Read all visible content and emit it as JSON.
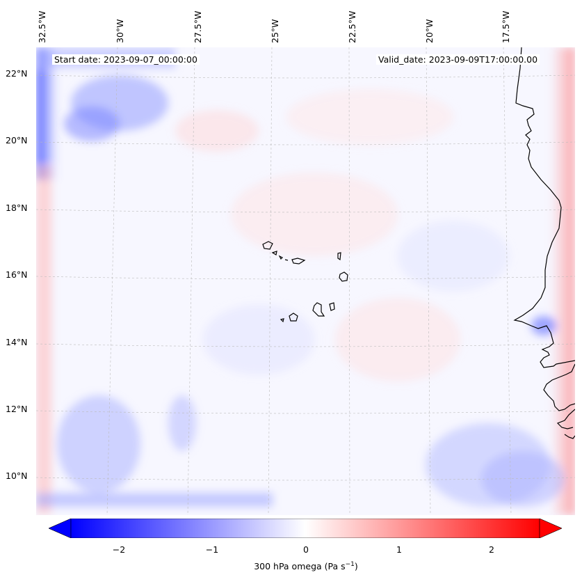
{
  "map": {
    "start_date": "Start date: 2023-09-07_00:00:00",
    "valid_date": "Valid_date: 2023-09-09T17:00:00.00",
    "lon_labels": [
      "32.5°W",
      "30°W",
      "27.5°W",
      "25°W",
      "22.5°W",
      "20°W",
      "17.5°W"
    ],
    "lat_labels": [
      "22°N",
      "20°N",
      "18°N",
      "16°N",
      "14°N",
      "12°N",
      "10°N"
    ],
    "field": "300 hPa omega",
    "colors": {
      "negative": "#0000ff",
      "positive": "#ff0000",
      "neutral": "#ffffff",
      "coast": "#000000",
      "grid": "#bbbbbb"
    }
  },
  "colorbar": {
    "ticks": [
      "−2",
      "−1",
      "0",
      "1",
      "2"
    ],
    "label_main": "300 hPa omega (Pa s",
    "label_sup": "−1",
    "label_end": ")",
    "range": [
      -2.6,
      2.6
    ]
  }
}
